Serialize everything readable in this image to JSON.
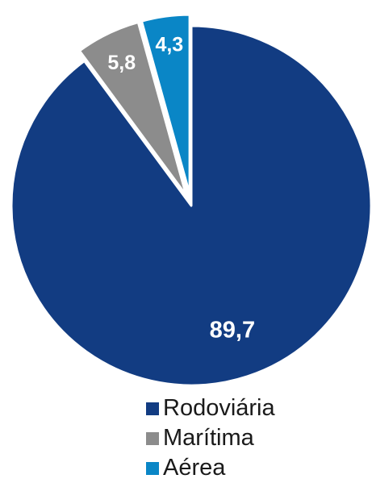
{
  "chart_data": {
    "type": "pie",
    "categories": [
      "Rodoviária",
      "Marítima",
      "Aérea"
    ],
    "values": [
      89.7,
      5.8,
      4.3
    ],
    "value_labels": [
      "89,7",
      "5,8",
      "4,3"
    ],
    "colors": [
      "#123c82",
      "#8c8c8c",
      "#0a86c6"
    ],
    "start_angle_deg": 0,
    "direction": "clockwise",
    "legend_position": "bottom-right",
    "exploded_slices": [
      "Marítima",
      "Aérea"
    ],
    "title": ""
  }
}
